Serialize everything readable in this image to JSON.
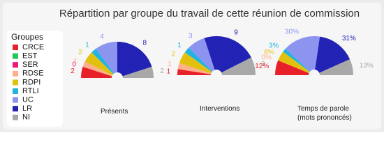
{
  "chart_data": {
    "type": "pie",
    "half": true,
    "title": "Répartition par groupe du travail de cette réunion de commission",
    "legend_title": "Groupes",
    "categories": [
      "CRCE",
      "EST",
      "SER",
      "RDSE",
      "RDPI",
      "RTLI",
      "UC",
      "LR",
      "NI"
    ],
    "colors": [
      "#e8202a",
      "#1ec85a",
      "#f0147c",
      "#ffb08a",
      "#e2c010",
      "#22b4e0",
      "#8c94f0",
      "#2222b4",
      "#a8a8a8"
    ],
    "series": [
      {
        "name": "Présents",
        "values": [
          2,
          null,
          0,
          1,
          2,
          1,
          4,
          8,
          2
        ]
      },
      {
        "name": "Interventions",
        "values": [
          1,
          null,
          null,
          1,
          2,
          1,
          3,
          9,
          3
        ]
      },
      {
        "name": "Temps de parole (mots prononcés)",
        "values": [
          12,
          null,
          null,
          0,
          8,
          3,
          30,
          31,
          13
        ],
        "value_labels": [
          "12%",
          null,
          null,
          "0%",
          "8%",
          "3%",
          "30%",
          "31%",
          "13%"
        ]
      }
    ]
  }
}
